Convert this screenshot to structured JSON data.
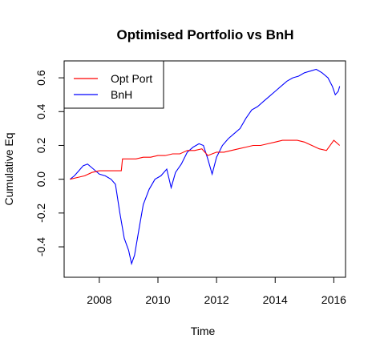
{
  "chart_data": {
    "type": "line",
    "title": "Optimised Portfolio vs BnH",
    "xlabel": "Time",
    "ylabel": "Cumulative Eq",
    "xlim": [
      2006.8,
      2016.4
    ],
    "ylim": [
      -0.58,
      0.7
    ],
    "xticks": [
      "2008",
      "2010",
      "2012",
      "2014",
      "2016"
    ],
    "yticks": [
      "-0.4",
      "-0.2",
      "0.0",
      "0.2",
      "0.4",
      "0.6"
    ],
    "legend_position": "top-left",
    "series": [
      {
        "name": "Opt Port",
        "color": "#ff0000",
        "x": [
          2007.0,
          2007.25,
          2007.5,
          2007.75,
          2008.0,
          2008.25,
          2008.5,
          2008.75,
          2008.79,
          2009.0,
          2009.25,
          2009.5,
          2009.75,
          2010.0,
          2010.25,
          2010.5,
          2010.75,
          2011.0,
          2011.25,
          2011.5,
          2011.7,
          2011.85,
          2012.0,
          2012.25,
          2012.5,
          2012.75,
          2013.0,
          2013.25,
          2013.5,
          2013.75,
          2014.0,
          2014.25,
          2014.5,
          2014.75,
          2015.0,
          2015.25,
          2015.5,
          2015.75,
          2016.0,
          2016.2
        ],
        "y": [
          0.0,
          0.01,
          0.02,
          0.04,
          0.05,
          0.05,
          0.05,
          0.05,
          0.12,
          0.12,
          0.12,
          0.13,
          0.13,
          0.14,
          0.14,
          0.15,
          0.15,
          0.17,
          0.17,
          0.18,
          0.14,
          0.15,
          0.16,
          0.16,
          0.17,
          0.18,
          0.19,
          0.2,
          0.2,
          0.21,
          0.22,
          0.23,
          0.23,
          0.23,
          0.22,
          0.2,
          0.18,
          0.17,
          0.23,
          0.2
        ]
      },
      {
        "name": "BnH",
        "color": "#0000ff",
        "x": [
          2007.0,
          2007.15,
          2007.3,
          2007.45,
          2007.6,
          2007.8,
          2008.0,
          2008.2,
          2008.4,
          2008.55,
          2008.7,
          2008.85,
          2009.0,
          2009.1,
          2009.2,
          2009.35,
          2009.5,
          2009.7,
          2009.9,
          2010.1,
          2010.3,
          2010.45,
          2010.6,
          2010.8,
          2011.0,
          2011.2,
          2011.4,
          2011.55,
          2011.7,
          2011.85,
          2012.0,
          2012.2,
          2012.4,
          2012.6,
          2012.8,
          2013.0,
          2013.2,
          2013.4,
          2013.6,
          2013.8,
          2014.0,
          2014.2,
          2014.4,
          2014.6,
          2014.8,
          2015.0,
          2015.2,
          2015.4,
          2015.6,
          2015.8,
          2015.95,
          2016.05,
          2016.15,
          2016.2
        ],
        "y": [
          0.0,
          0.02,
          0.05,
          0.08,
          0.09,
          0.06,
          0.03,
          0.02,
          0.0,
          -0.03,
          -0.2,
          -0.35,
          -0.42,
          -0.5,
          -0.45,
          -0.3,
          -0.15,
          -0.06,
          0.0,
          0.02,
          0.06,
          -0.05,
          0.04,
          0.09,
          0.16,
          0.19,
          0.21,
          0.2,
          0.12,
          0.03,
          0.13,
          0.2,
          0.24,
          0.27,
          0.3,
          0.36,
          0.41,
          0.43,
          0.46,
          0.49,
          0.52,
          0.55,
          0.58,
          0.6,
          0.61,
          0.63,
          0.64,
          0.65,
          0.63,
          0.6,
          0.55,
          0.5,
          0.52,
          0.55
        ]
      }
    ]
  }
}
